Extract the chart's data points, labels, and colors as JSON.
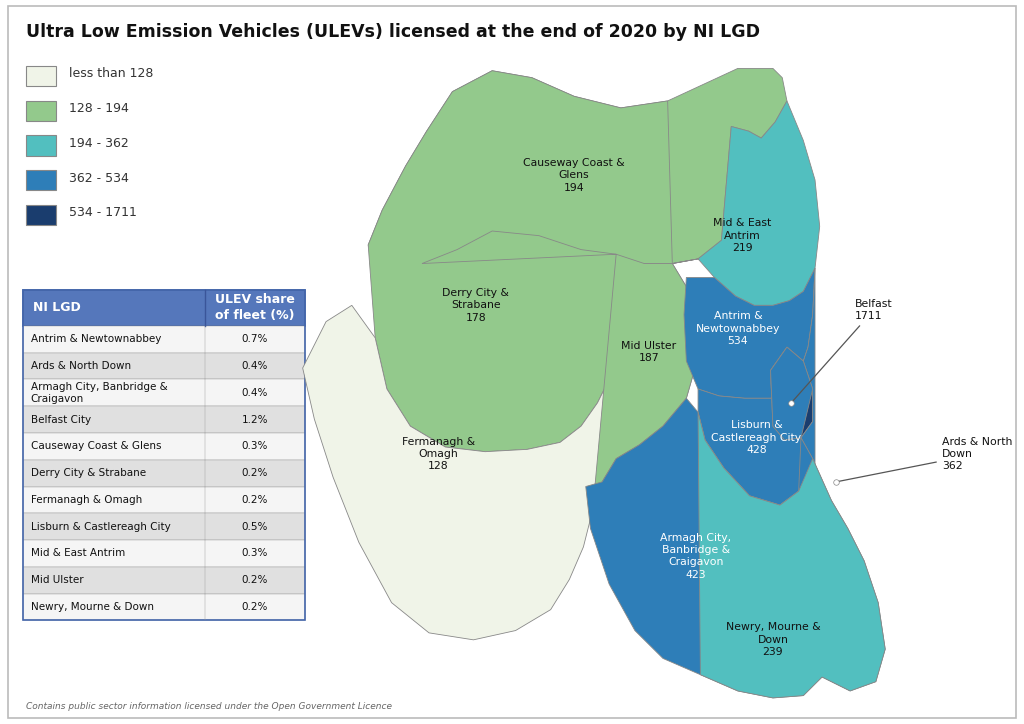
{
  "title": "Ultra Low Emission Vehicles (ULEVs) licensed at the end of 2020 by NI LGD",
  "legend_entries": [
    {
      "label": "less than 128",
      "color": "#f0f4e8"
    },
    {
      "label": "128 - 194",
      "color": "#93c98c"
    },
    {
      "label": "194 - 362",
      "color": "#52bfbf"
    },
    {
      "label": "362 - 534",
      "color": "#2e7eb8"
    },
    {
      "label": "534 - 1711",
      "color": "#1a3d6e"
    }
  ],
  "table_header_bg": "#5577bb",
  "table_header_text": "#ffffff",
  "table_row_alt": "#e0e0e0",
  "table_row_white": "#f5f5f5",
  "table_border": "#4466aa",
  "table_data": [
    [
      "Antrim & Newtownabbey",
      "0.7%"
    ],
    [
      "Ards & North Down",
      "0.4%"
    ],
    [
      "Armagh City, Banbridge &\nCraigavon",
      "0.4%"
    ],
    [
      "Belfast City",
      "1.2%"
    ],
    [
      "Causeway Coast & Glens",
      "0.3%"
    ],
    [
      "Derry City & Strabane",
      "0.2%"
    ],
    [
      "Fermanagh & Omagh",
      "0.2%"
    ],
    [
      "Lisburn & Castlereagh City",
      "0.5%"
    ],
    [
      "Mid & East Antrim",
      "0.3%"
    ],
    [
      "Mid Ulster",
      "0.2%"
    ],
    [
      "Newry, Mourne & Down",
      "0.2%"
    ]
  ],
  "color_map": {
    "Causeway Coast and Glens": "#93c98c",
    "Derry City and Strabane": "#93c98c",
    "Fermanagh and Omagh": "#f0f4e8",
    "Mid Ulster": "#93c98c",
    "Mid and East Antrim": "#52bfbf",
    "Antrim and Newtownabbey": "#2e7eb8",
    "Belfast": "#1a3d6e",
    "Lisburn and Castlereagh": "#2e7eb8",
    "Ards and North Down": "#2e7eb8",
    "Armagh City, Banbridge and Craigavon": "#2e7eb8",
    "Newry, Mourne and Down": "#52bfbf"
  },
  "label_map": {
    "Causeway Coast and Glens": "Causeway Coast &\nGlens\n194",
    "Derry City and Strabane": "Derry City &\nStrabane\n178",
    "Fermanagh and Omagh": "Fermanagh &\nOmagh\n128",
    "Mid Ulster": "Mid Ulster\n187",
    "Mid and East Antrim": "Mid & East\nAntrim\n219",
    "Antrim and Newtownabbey": "Antrim &\nNewtownabbey\n534",
    "Belfast": "Belfast\n1711",
    "Lisburn and Castlereagh": "Lisburn &\nCastlereagh City\n428",
    "Ards and North Down": "Ards & North\nDown\n362",
    "Armagh City, Banbridge and Craigavon": "Armagh City,\nBanbridge &\nCraigavon\n423",
    "Newry, Mourne and Down": "Newry, Mourne &\nDown\n239"
  },
  "text_color_map": {
    "Antrim and Newtownabbey": "#ffffff",
    "Belfast": "#ffffff",
    "Lisburn and Castlereagh": "#ffffff",
    "Armagh City, Banbridge and Craigavon": "#ffffff"
  },
  "background_color": "#ffffff",
  "footer_text": "Contains public sector information licensed under the Open Government Licence",
  "map_edge_color": "#888888",
  "map_edge_width": 0.6
}
